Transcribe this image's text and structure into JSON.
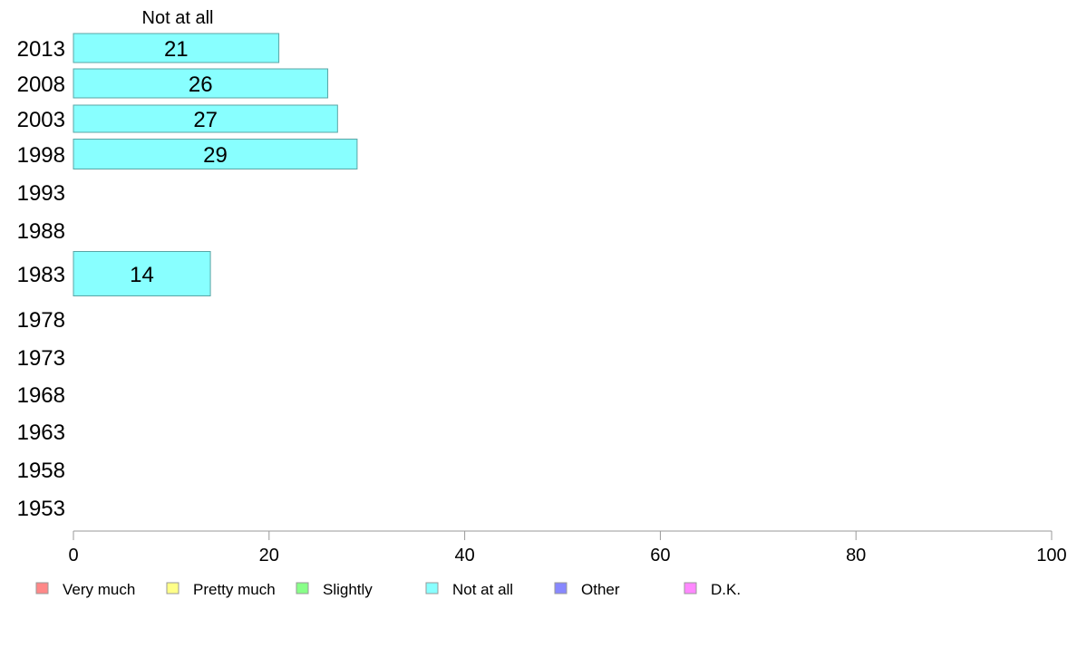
{
  "chart_data": {
    "type": "bar",
    "orientation": "horizontal",
    "stacked": true,
    "title": "",
    "xlabel": "",
    "ylabel": "",
    "xlim": [
      0,
      100
    ],
    "x_ticks": [
      "0",
      "20",
      "40",
      "60",
      "80",
      "100"
    ],
    "categories": [
      "2013",
      "2008",
      "2003",
      "1998",
      "1993",
      "1988",
      "1983",
      "1978",
      "1973",
      "1968",
      "1963",
      "1958",
      "1953"
    ],
    "series_header": "Not at all",
    "series": [
      {
        "name": "Very much",
        "color": "#ff8888",
        "values": [
          null,
          null,
          null,
          null,
          null,
          null,
          null,
          null,
          null,
          null,
          null,
          null,
          null
        ]
      },
      {
        "name": "Pretty much",
        "color": "#ffff88",
        "values": [
          null,
          null,
          null,
          null,
          null,
          null,
          null,
          null,
          null,
          null,
          null,
          null,
          null
        ]
      },
      {
        "name": "Slightly",
        "color": "#88ff88",
        "values": [
          null,
          null,
          null,
          null,
          null,
          null,
          null,
          null,
          null,
          null,
          null,
          null,
          null
        ]
      },
      {
        "name": "Not at all",
        "color": "#88ffff",
        "values": [
          21,
          26,
          27,
          29,
          null,
          null,
          14,
          null,
          null,
          null,
          null,
          null,
          null
        ]
      },
      {
        "name": "Other",
        "color": "#8888ff",
        "values": [
          null,
          null,
          null,
          null,
          null,
          null,
          null,
          null,
          null,
          null,
          null,
          null,
          null
        ]
      },
      {
        "name": "D.K.",
        "color": "#ff88ff",
        "values": [
          null,
          null,
          null,
          null,
          null,
          null,
          null,
          null,
          null,
          null,
          null,
          null,
          null
        ]
      }
    ],
    "legend_position": "bottom",
    "grid": false
  }
}
